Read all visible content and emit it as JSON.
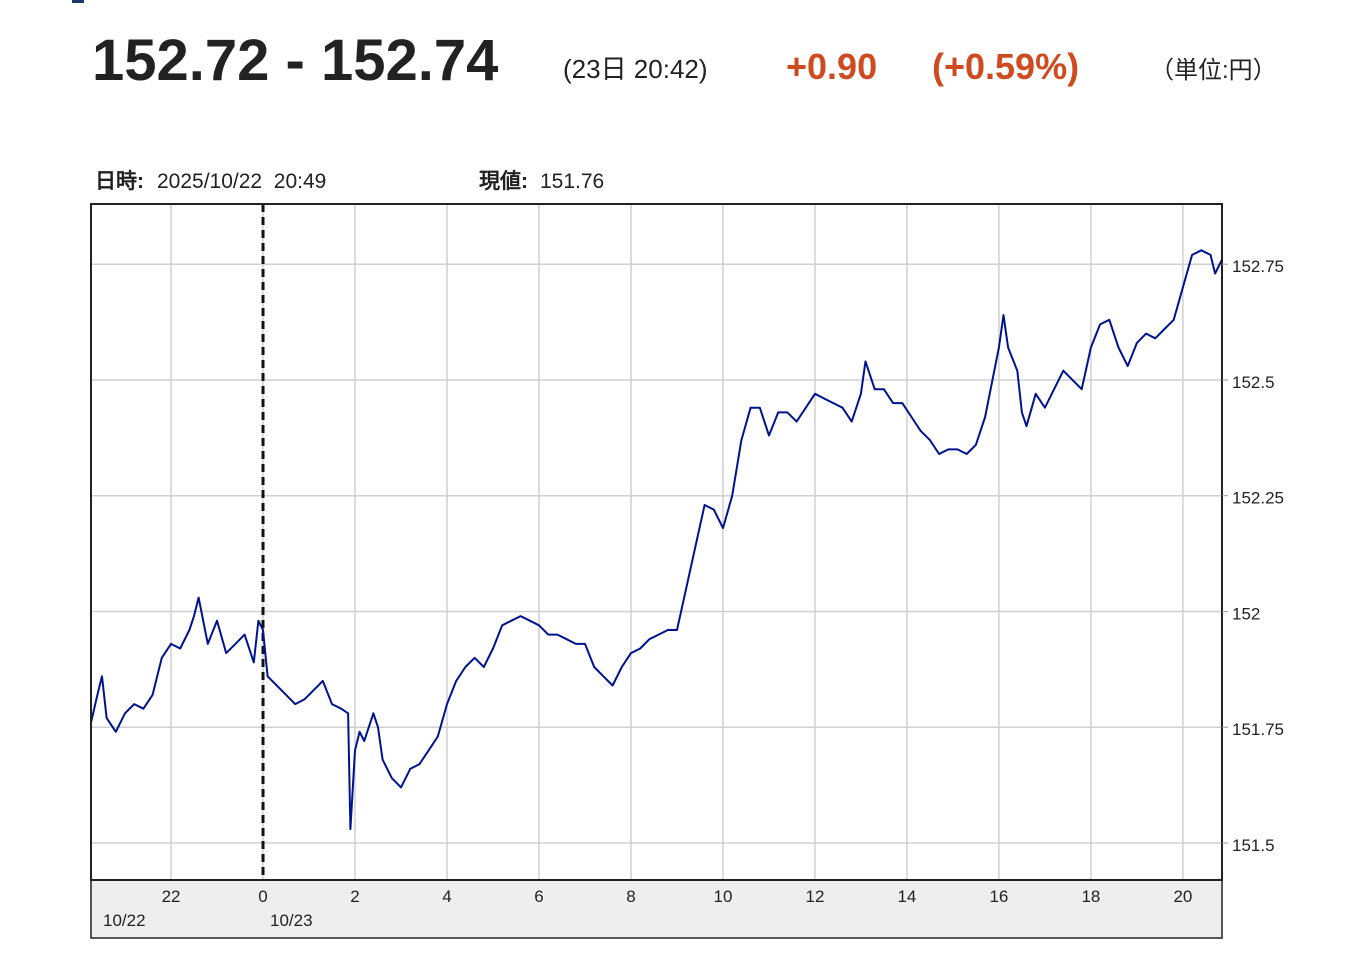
{
  "quote": {
    "price": "152.72 - 152.74",
    "time": "(23日 20:42)",
    "change": "+0.90",
    "change_pct": "(+0.59%)",
    "unit": "（単位:円）"
  },
  "info": {
    "date_label": "日時:",
    "date_value": "2025/10/22  20:49",
    "price_label": "現値:",
    "price_value": "151.76"
  },
  "chart_data": {
    "type": "line",
    "series": [
      {
        "color": "#00138f",
        "x": [
          20.26,
          20.4,
          20.5,
          20.6,
          20.8,
          21.0,
          21.2,
          21.4,
          21.6,
          21.8,
          22.0,
          22.2,
          22.4,
          22.5,
          22.6,
          22.8,
          23.0,
          23.2,
          23.4,
          23.6,
          23.8,
          23.9,
          24.0,
          24.1,
          24.3,
          24.5,
          24.7,
          24.9,
          25.1,
          25.3,
          25.5,
          25.7,
          25.85,
          25.9,
          26.0,
          26.1,
          26.2,
          26.3,
          26.4,
          26.5,
          26.6,
          26.8,
          27.0,
          27.2,
          27.4,
          27.6,
          27.8,
          28.0,
          28.2,
          28.4,
          28.6,
          28.8,
          29.0,
          29.2,
          29.4,
          29.6,
          29.8,
          30.0,
          30.2,
          30.4,
          30.6,
          30.8,
          31.0,
          31.2,
          31.4,
          31.6,
          31.8,
          32.0,
          32.2,
          32.4,
          32.6,
          32.8,
          33.0,
          33.2,
          33.4,
          33.6,
          33.8,
          34.0,
          34.2,
          34.4,
          34.6,
          34.8,
          35.0,
          35.2,
          35.4,
          35.6,
          35.8,
          36.0,
          36.2,
          36.4,
          36.6,
          36.8,
          37.0,
          37.1,
          37.3,
          37.5,
          37.7,
          37.9,
          38.1,
          38.3,
          38.5,
          38.7,
          38.9,
          39.1,
          39.3,
          39.5,
          39.7,
          39.9,
          40.0,
          40.1,
          40.2,
          40.4,
          40.5,
          40.6,
          40.8,
          41.0,
          41.2,
          41.4,
          41.6,
          41.8,
          42.0,
          42.2,
          42.4,
          42.6,
          42.8,
          43.0,
          43.2,
          43.4,
          43.6,
          43.8,
          44.0,
          44.2,
          44.4,
          44.6,
          44.7,
          44.85
        ],
        "values": [
          151.76,
          151.82,
          151.86,
          151.77,
          151.74,
          151.78,
          151.8,
          151.79,
          151.82,
          151.9,
          151.93,
          151.92,
          151.96,
          151.99,
          152.03,
          151.93,
          151.98,
          151.91,
          151.93,
          151.95,
          151.89,
          151.98,
          151.96,
          151.86,
          151.84,
          151.82,
          151.8,
          151.81,
          151.83,
          151.85,
          151.8,
          151.79,
          151.78,
          151.53,
          151.7,
          151.74,
          151.72,
          151.75,
          151.78,
          151.75,
          151.68,
          151.64,
          151.62,
          151.66,
          151.67,
          151.7,
          151.73,
          151.8,
          151.85,
          151.88,
          151.9,
          151.88,
          151.92,
          151.97,
          151.98,
          151.99,
          151.98,
          151.97,
          151.95,
          151.95,
          151.94,
          151.93,
          151.93,
          151.88,
          151.86,
          151.84,
          151.88,
          151.91,
          151.92,
          151.94,
          151.95,
          151.96,
          151.96,
          152.05,
          152.14,
          152.23,
          152.22,
          152.18,
          152.25,
          152.37,
          152.44,
          152.44,
          152.38,
          152.43,
          152.43,
          152.41,
          152.44,
          152.47,
          152.46,
          152.45,
          152.44,
          152.41,
          152.47,
          152.54,
          152.48,
          152.48,
          152.45,
          152.45,
          152.42,
          152.39,
          152.37,
          152.34,
          152.35,
          152.35,
          152.34,
          152.36,
          152.42,
          152.52,
          152.57,
          152.64,
          152.57,
          152.52,
          152.43,
          152.4,
          152.47,
          152.44,
          152.48,
          152.52,
          152.5,
          152.48,
          152.57,
          152.62,
          152.63,
          152.57,
          152.53,
          152.58,
          152.6,
          152.59,
          152.61,
          152.63,
          152.7,
          152.77,
          152.78,
          152.77,
          152.73,
          152.76
        ]
      }
    ],
    "xlim": [
      20.26,
      44.85
    ],
    "xticks": [
      22,
      {
        "value": 24,
        "label": "0"
      },
      {
        "value": 26,
        "label": "2"
      },
      {
        "value": 28,
        "label": "4"
      },
      {
        "value": 30,
        "label": "6"
      },
      {
        "value": 32,
        "label": "8"
      },
      {
        "value": 34,
        "label": "10"
      },
      {
        "value": 36,
        "label": "12"
      },
      {
        "value": 38,
        "label": "14"
      },
      {
        "value": 40,
        "label": "16"
      },
      {
        "value": 42,
        "label": "18"
      },
      {
        "value": 44,
        "label": "20"
      }
    ],
    "ylim": [
      151.42,
      152.88
    ],
    "yticks": [
      151.5,
      151.75,
      152,
      152.25,
      152.5,
      152.75
    ],
    "grid": true,
    "day_boundary": 24,
    "date_labels": [
      "10/22",
      "10/23"
    ]
  }
}
